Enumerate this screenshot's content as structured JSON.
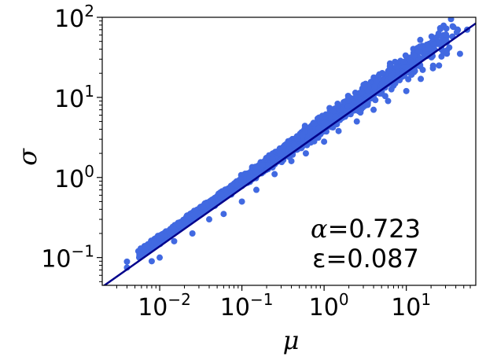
{
  "chart_data": {
    "type": "scatter",
    "title": "",
    "xlabel": "μ",
    "ylabel": "σ",
    "xscale": "log",
    "yscale": "log",
    "xlim": [
      0.002,
      70
    ],
    "ylim": [
      0.045,
      100
    ],
    "x_ticks": [
      {
        "value": 0.01,
        "base": "10",
        "exp": "−2"
      },
      {
        "value": 0.1,
        "base": "10",
        "exp": "−1"
      },
      {
        "value": 1,
        "base": "10",
        "exp": "0"
      },
      {
        "value": 10,
        "base": "10",
        "exp": "1"
      }
    ],
    "y_ticks": [
      {
        "value": 0.1,
        "base": "10",
        "exp": "−1"
      },
      {
        "value": 1,
        "base": "10",
        "exp": "0"
      },
      {
        "value": 10,
        "base": "10",
        "exp": "1"
      },
      {
        "value": 100,
        "base": "10",
        "exp": "2"
      }
    ],
    "grid": false,
    "scatter_color": "#4169e1",
    "fit_color": "#00008b",
    "points": [
      [
        0.004,
        0.089
      ],
      [
        0.004,
        0.075
      ],
      [
        0.0055,
        0.12
      ],
      [
        0.0065,
        0.11
      ],
      [
        0.007,
        0.14
      ],
      [
        0.008,
        0.09
      ],
      [
        0.009,
        0.16
      ],
      [
        0.01,
        0.1
      ],
      [
        0.012,
        0.2
      ],
      [
        0.015,
        0.16
      ],
      [
        0.02,
        0.28
      ],
      [
        0.025,
        0.2
      ],
      [
        0.03,
        0.4
      ],
      [
        0.04,
        0.3
      ],
      [
        0.05,
        0.55
      ],
      [
        0.06,
        0.35
      ],
      [
        0.08,
        0.8
      ],
      [
        0.1,
        0.5
      ],
      [
        0.12,
        1.1
      ],
      [
        0.15,
        0.7
      ],
      [
        0.2,
        1.6
      ],
      [
        0.25,
        1.1
      ],
      [
        0.3,
        2.3
      ],
      [
        0.4,
        1.6
      ],
      [
        0.5,
        3.2
      ],
      [
        0.6,
        2.0
      ],
      [
        0.8,
        4.5
      ],
      [
        1.0,
        2.8
      ],
      [
        1.2,
        6.0
      ],
      [
        1.5,
        3.8
      ],
      [
        2.0,
        8.5
      ],
      [
        2.5,
        5.0
      ],
      [
        3.0,
        12.0
      ],
      [
        4.0,
        7.0
      ],
      [
        5.0,
        16.0
      ],
      [
        6.0,
        9.0
      ],
      [
        8.0,
        22.0
      ],
      [
        10.0,
        12.0
      ],
      [
        12.0,
        30.0
      ],
      [
        15.0,
        17.0
      ],
      [
        20.0,
        45.0
      ],
      [
        25.0,
        25.0
      ],
      [
        30.0,
        60.0
      ],
      [
        35.0,
        95.0
      ],
      [
        45.0,
        35.0
      ],
      [
        55.0,
        70.0
      ]
    ],
    "fit_line": {
      "x": [
        0.002,
        70
      ],
      "y": [
        0.043,
        84
      ]
    },
    "annotations": [
      {
        "symbol": "α",
        "value": "=0.723"
      },
      {
        "symbol": "ε",
        "value": "=0.087"
      }
    ]
  }
}
